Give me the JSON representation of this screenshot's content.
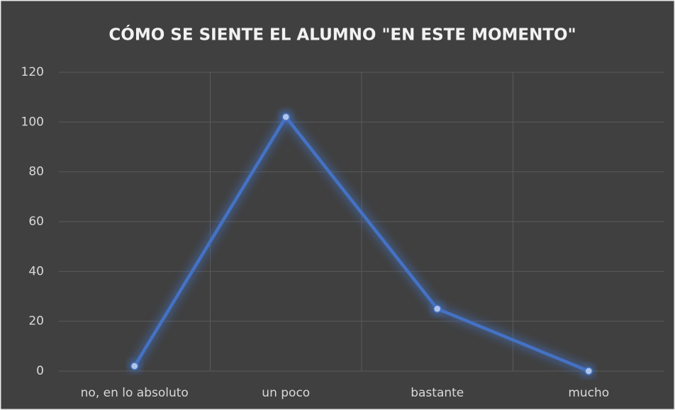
{
  "chart_data": {
    "type": "line",
    "title": "CÓMO SE SIENTE EL ALUMNO \"EN ESTE MOMENTO\"",
    "categories": [
      "no, en lo absoluto",
      "un poco",
      "bastante",
      "mucho"
    ],
    "values": [
      2,
      102,
      25,
      0
    ],
    "color": "#4472c4",
    "ylim": [
      0,
      120
    ],
    "yticks": [
      0,
      20,
      40,
      60,
      80,
      100,
      120
    ],
    "grid": true
  }
}
